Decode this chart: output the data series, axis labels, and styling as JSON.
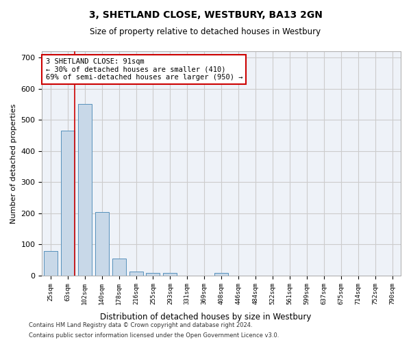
{
  "title1": "3, SHETLAND CLOSE, WESTBURY, BA13 2GN",
  "title2": "Size of property relative to detached houses in Westbury",
  "xlabel": "Distribution of detached houses by size in Westbury",
  "ylabel": "Number of detached properties",
  "footer1": "Contains HM Land Registry data © Crown copyright and database right 2024.",
  "footer2": "Contains public sector information licensed under the Open Government Licence v3.0.",
  "categories": [
    "25sqm",
    "63sqm",
    "102sqm",
    "140sqm",
    "178sqm",
    "216sqm",
    "255sqm",
    "293sqm",
    "331sqm",
    "369sqm",
    "408sqm",
    "446sqm",
    "484sqm",
    "522sqm",
    "561sqm",
    "599sqm",
    "637sqm",
    "675sqm",
    "714sqm",
    "752sqm",
    "790sqm"
  ],
  "values": [
    78,
    465,
    550,
    204,
    56,
    14,
    9,
    8,
    0,
    0,
    8,
    0,
    0,
    0,
    0,
    0,
    0,
    0,
    0,
    0,
    0
  ],
  "bar_color": "#c8d8e8",
  "bar_edge_color": "#5590bb",
  "grid_color": "#cccccc",
  "bg_color": "#eef2f8",
  "vline_color": "#cc0000",
  "annotation_text": "3 SHETLAND CLOSE: 91sqm\n← 30% of detached houses are smaller (410)\n69% of semi-detached houses are larger (950) →",
  "annotation_box_color": "#ffffff",
  "annotation_box_edge": "#cc0000",
  "ylim": [
    0,
    720
  ],
  "yticks": [
    0,
    100,
    200,
    300,
    400,
    500,
    600,
    700
  ]
}
